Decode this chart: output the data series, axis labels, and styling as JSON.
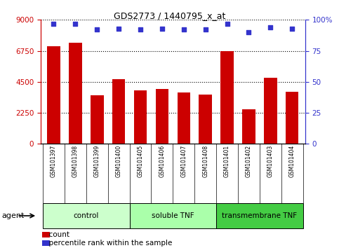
{
  "title": "GDS2773 / 1440795_x_at",
  "samples": [
    "GSM101397",
    "GSM101398",
    "GSM101399",
    "GSM101400",
    "GSM101405",
    "GSM101406",
    "GSM101407",
    "GSM101408",
    "GSM101401",
    "GSM101402",
    "GSM101403",
    "GSM101404"
  ],
  "counts": [
    7100,
    7350,
    3500,
    4700,
    3900,
    4000,
    3750,
    3600,
    6750,
    2500,
    4800,
    3800
  ],
  "percentiles": [
    97,
    97,
    92,
    93,
    92,
    93,
    92,
    92,
    97,
    90,
    94,
    93
  ],
  "left_ylim": [
    0,
    9000
  ],
  "right_ylim": [
    0,
    100
  ],
  "left_yticks": [
    0,
    2250,
    4500,
    6750,
    9000
  ],
  "right_yticks": [
    0,
    25,
    50,
    75,
    100
  ],
  "bar_color": "#cc0000",
  "dot_color": "#3333cc",
  "groups": [
    {
      "label": "control",
      "start": 0,
      "end": 3,
      "color": "#ccffcc"
    },
    {
      "label": "soluble TNF",
      "start": 4,
      "end": 7,
      "color": "#aaffaa"
    },
    {
      "label": "transmembrane TNF",
      "start": 8,
      "end": 11,
      "color": "#44cc44"
    }
  ],
  "agent_label": "agent",
  "legend_items": [
    {
      "label": "count",
      "color": "#cc0000"
    },
    {
      "label": "percentile rank within the sample",
      "color": "#3333cc"
    }
  ],
  "tick_color_left": "#cc0000",
  "tick_color_right": "#3333cc",
  "bg_color": "#ffffff"
}
